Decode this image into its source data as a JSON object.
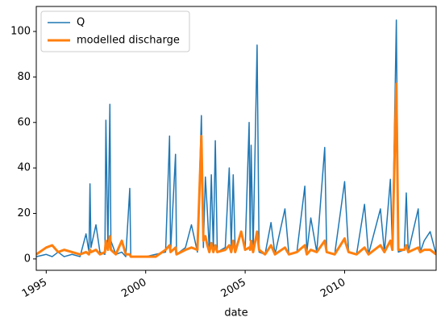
{
  "chart_data": {
    "type": "line",
    "x_label": "date",
    "x": [
      1994.5,
      1995.0,
      1995.3,
      1995.6,
      1995.9,
      1996.3,
      1996.7,
      1997.0,
      1997.15,
      1997.2,
      1997.25,
      1997.5,
      1997.7,
      1997.95,
      1998.0,
      1998.1,
      1998.2,
      1998.25,
      1998.5,
      1998.8,
      1999.0,
      1999.2,
      1999.25,
      1999.6,
      2000.0,
      2000.5,
      2001.0,
      2001.2,
      2001.25,
      2001.5,
      2001.55,
      2002.0,
      2002.3,
      2002.6,
      2002.8,
      2002.9,
      2003.0,
      2003.1,
      2003.2,
      2003.3,
      2003.4,
      2003.5,
      2003.6,
      2004.0,
      2004.2,
      2004.3,
      2004.4,
      2004.5,
      2004.8,
      2005.0,
      2005.2,
      2005.25,
      2005.3,
      2005.4,
      2005.6,
      2005.7,
      2006.0,
      2006.3,
      2006.5,
      2007.0,
      2007.2,
      2007.6,
      2008.0,
      2008.1,
      2008.3,
      2008.6,
      2009.0,
      2009.1,
      2009.5,
      2010.0,
      2010.05,
      2010.2,
      2010.6,
      2011.0,
      2011.2,
      2011.8,
      2012.0,
      2012.3,
      2012.4,
      2012.6,
      2012.7,
      2013.0,
      2013.1,
      2013.2,
      2013.7,
      2013.8,
      2014.0,
      2014.3,
      2014.6
    ],
    "series": [
      {
        "name": "Q",
        "color": "#1f77b4",
        "width": 1.5,
        "values": [
          1,
          2,
          1,
          3,
          1,
          2,
          1,
          11,
          3,
          33,
          5,
          15,
          3,
          2,
          61,
          5,
          68,
          8,
          2,
          3,
          1,
          31,
          1,
          1,
          1,
          2,
          3,
          54,
          3,
          46,
          2,
          5,
          15,
          3,
          63,
          5,
          36,
          21,
          3,
          37,
          4,
          52,
          3,
          5,
          40,
          5,
          37,
          3,
          12,
          4,
          60,
          8,
          50,
          4,
          94,
          3,
          2,
          16,
          2,
          22,
          2,
          3,
          32,
          3,
          18,
          3,
          49,
          3,
          2,
          34,
          26,
          3,
          2,
          24,
          2,
          22,
          3,
          35,
          4,
          105,
          3,
          4,
          29,
          3,
          22,
          3,
          8,
          12,
          2
        ]
      },
      {
        "name": "modelled discharge",
        "color": "#ff7f0e",
        "width": 3,
        "values": [
          2,
          5,
          6,
          3,
          4,
          3,
          2,
          3,
          2,
          4,
          3,
          4,
          2,
          3,
          8,
          4,
          10,
          4,
          2,
          8,
          2,
          2,
          1,
          1,
          1,
          1,
          4,
          6,
          3,
          5,
          2,
          4,
          5,
          4,
          54,
          8,
          10,
          6,
          3,
          7,
          3,
          6,
          3,
          4,
          6,
          3,
          8,
          3,
          12,
          4,
          5,
          4,
          8,
          3,
          12,
          4,
          2,
          6,
          2,
          5,
          2,
          3,
          6,
          2,
          4,
          3,
          8,
          3,
          2,
          9,
          7,
          3,
          2,
          5,
          2,
          6,
          3,
          8,
          4,
          77,
          4,
          4,
          6,
          3,
          5,
          3,
          4,
          4,
          2
        ]
      }
    ],
    "xlim": [
      1994.5,
      2014.6
    ],
    "xticks": [
      1995,
      2000,
      2005,
      2010
    ],
    "ylim": [
      -5,
      111
    ],
    "yticks": [
      0,
      20,
      40,
      60,
      80,
      100
    ],
    "legend": "upper left"
  }
}
